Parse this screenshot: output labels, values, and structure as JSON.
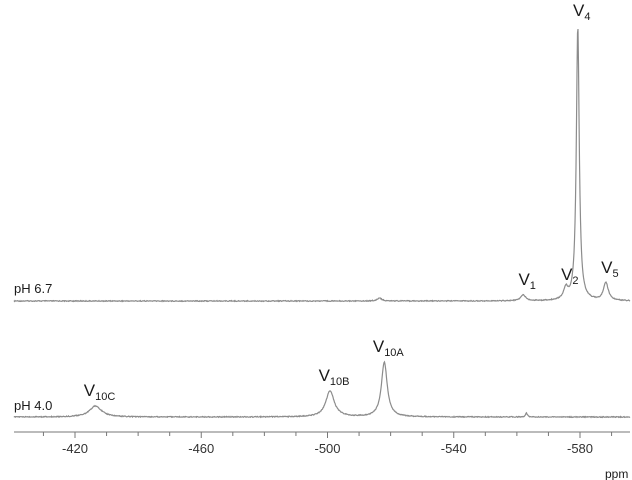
{
  "chart_data": {
    "type": "line",
    "title": "",
    "xlabel": "ppm",
    "ylabel": "",
    "x_reversed": true,
    "xlim": [
      -405,
      -600
    ],
    "grid": false,
    "xticks": [
      -420,
      -460,
      -500,
      -540,
      -580
    ],
    "series": [
      {
        "name": "pH 6.7",
        "baseline": 0,
        "peaks": [
          {
            "label": "V",
            "sub": "1",
            "ppm": -562,
            "height": 6,
            "width": 0.9
          },
          {
            "label": "V",
            "sub": "2",
            "ppm": -575.5,
            "height": 11,
            "width": 0.8
          },
          {
            "label": "V",
            "sub": "4",
            "ppm": -579.3,
            "height": 275,
            "width": 0.55
          },
          {
            "label": "V",
            "sub": "5",
            "ppm": -588.2,
            "height": 18,
            "width": 0.9
          },
          {
            "label": "",
            "sub": "",
            "ppm": -516.5,
            "height": 3,
            "width": 0.8
          }
        ]
      },
      {
        "name": "pH 4.0",
        "baseline": 0,
        "peaks": [
          {
            "label": "V",
            "sub": "10C",
            "ppm": -426.5,
            "height": 11,
            "width": 2.3
          },
          {
            "label": "V",
            "sub": "10B",
            "ppm": -500.8,
            "height": 26,
            "width": 1.6
          },
          {
            "label": "V",
            "sub": "10A",
            "ppm": -518,
            "height": 55,
            "width": 1.1
          },
          {
            "label": "",
            "sub": "",
            "ppm": -563,
            "height": 4,
            "width": 0.35
          }
        ]
      }
    ]
  },
  "colors": {
    "trace": "#8c8c8c",
    "axis": "#777777",
    "text": "#1a1a1a"
  }
}
